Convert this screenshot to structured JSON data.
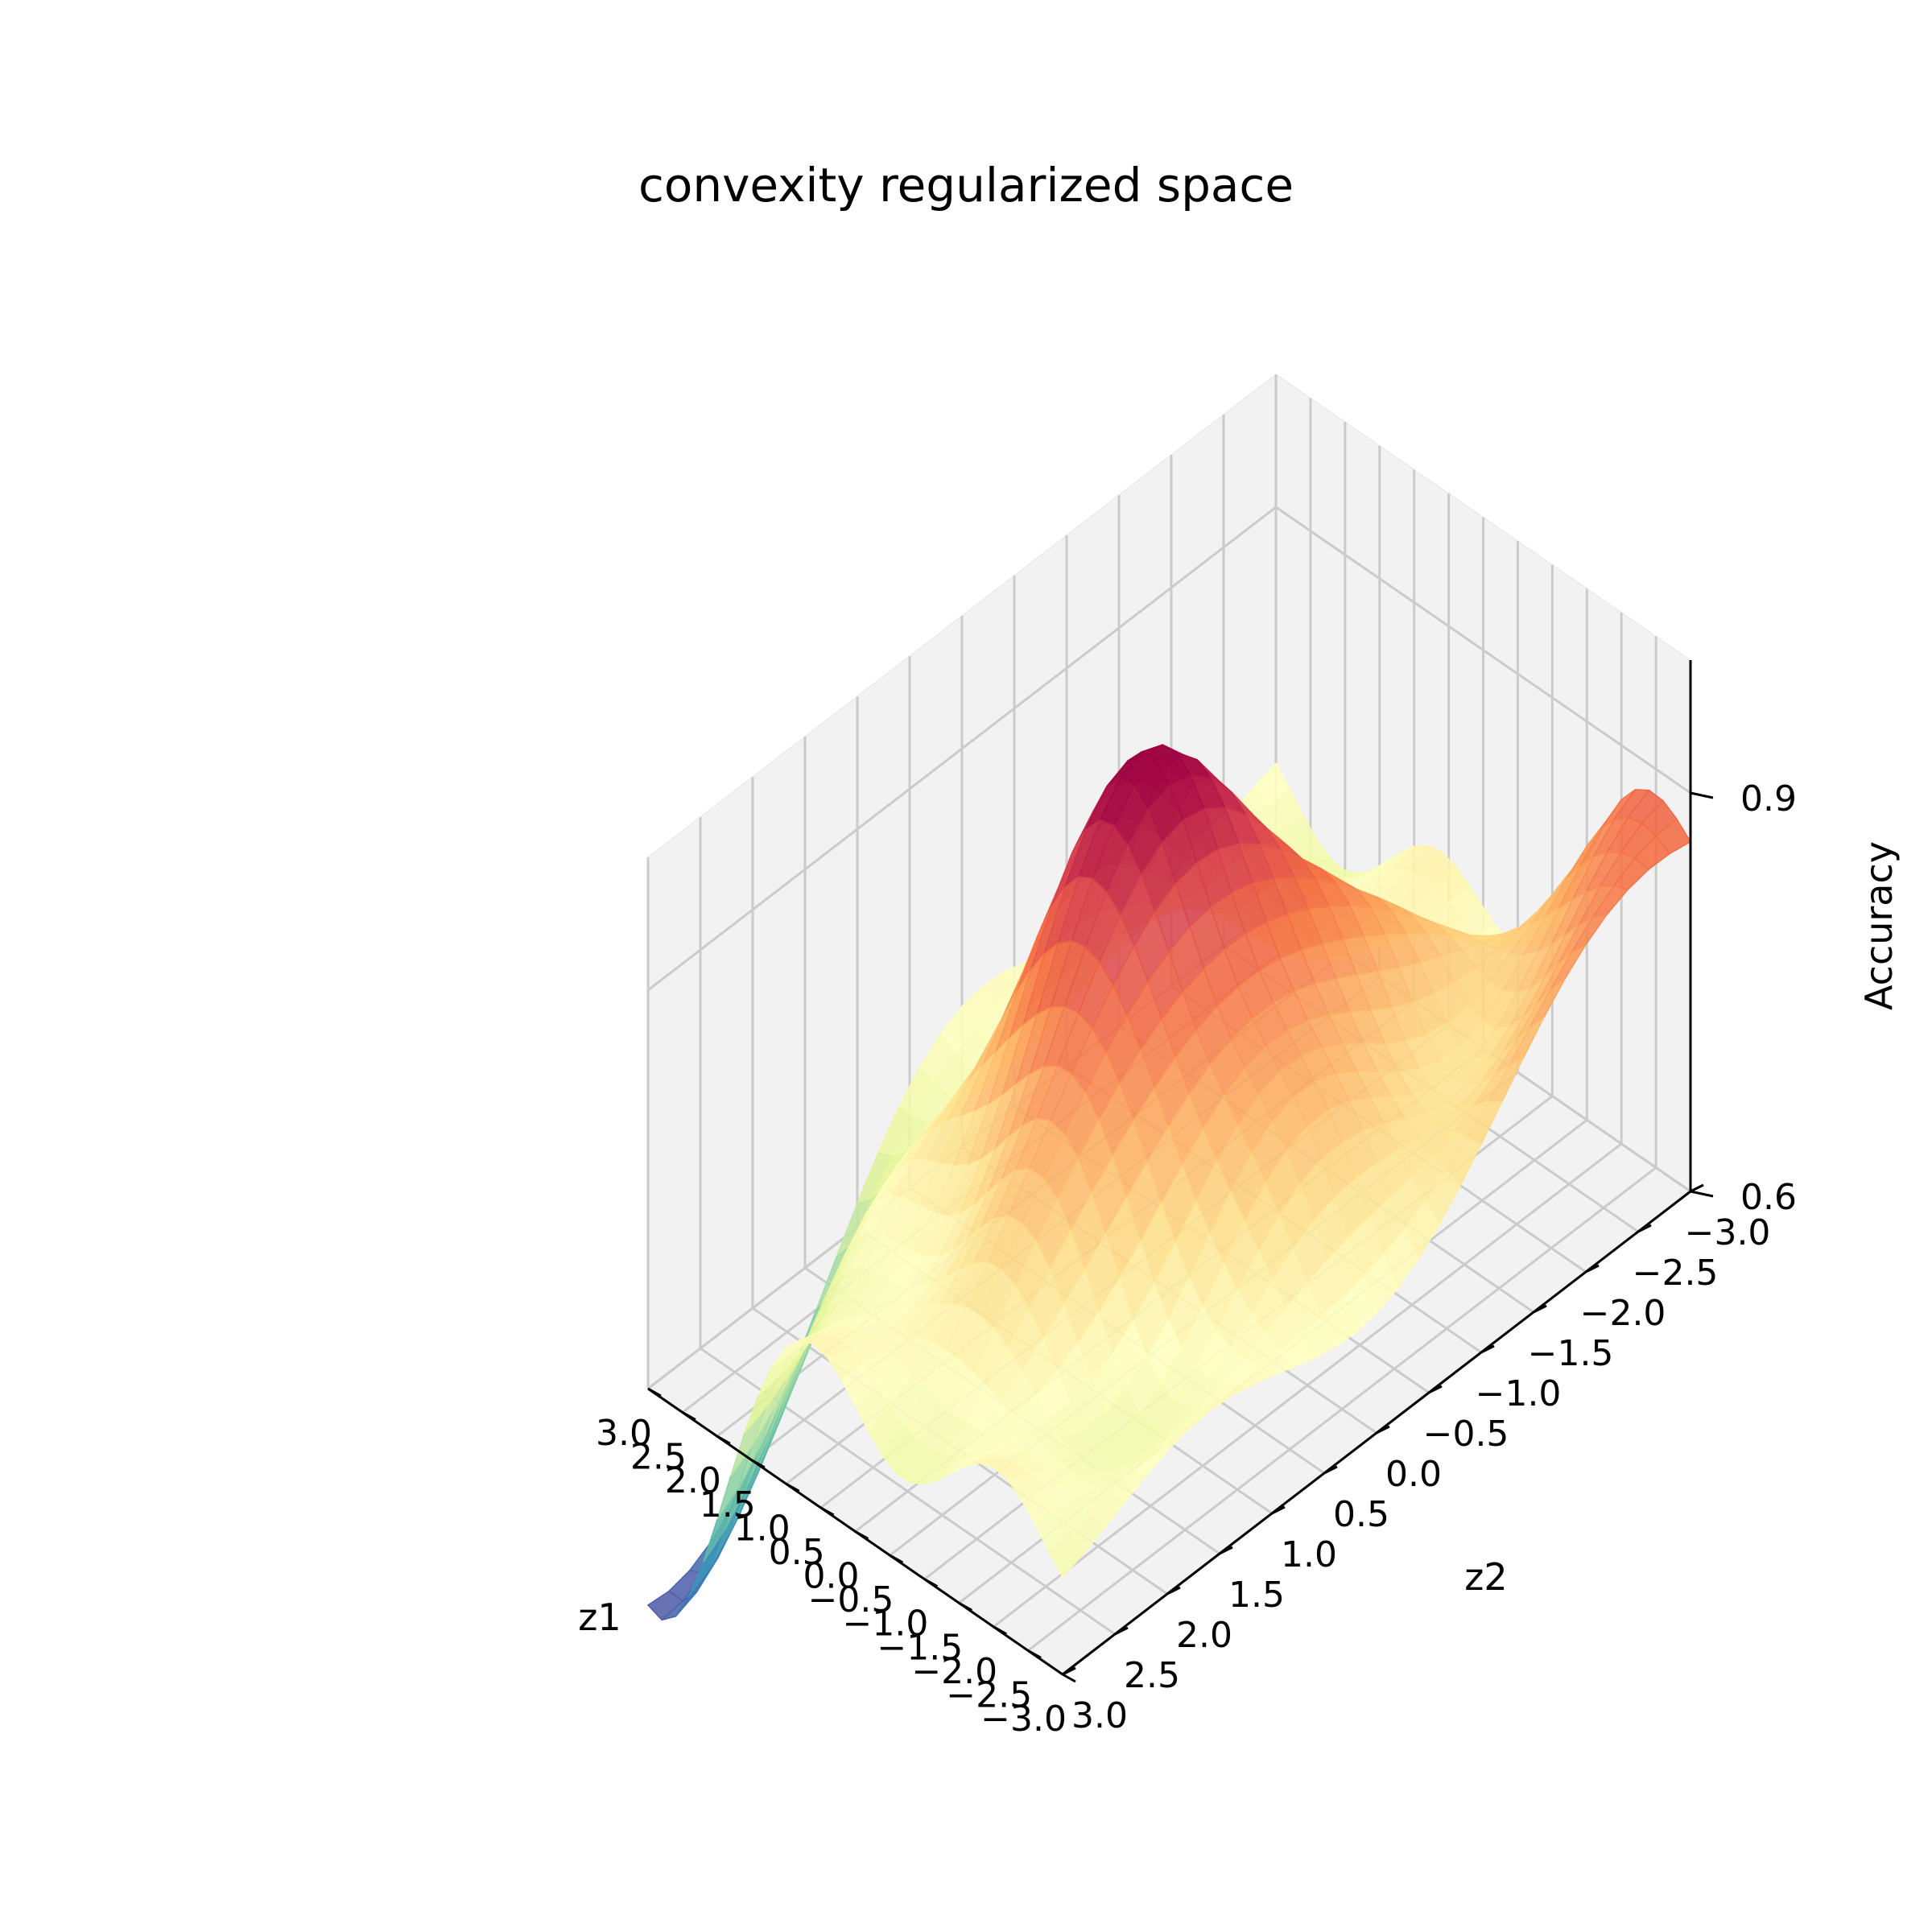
{
  "chart_data": {
    "type": "surface",
    "title": "convexity regularized space",
    "xlabel": "z1",
    "ylabel": "z2",
    "zlabel": "Accuracy",
    "colormap": "Spectral",
    "x_range": [
      -3.0,
      3.0
    ],
    "y_range": [
      -3.0,
      3.0
    ],
    "z_range": [
      0.6,
      1.0
    ],
    "x_ticks": [
      "−3.0",
      "−2.5",
      "−2.0",
      "−1.5",
      "−1.0",
      "−0.5",
      "0.0",
      "0.5",
      "1.0",
      "1.5",
      "2.0",
      "2.5",
      "3.0"
    ],
    "y_ticks": [
      "−3.0",
      "−2.5",
      "−2.0",
      "−1.5",
      "−1.0",
      "−0.5",
      "0.0",
      "0.5",
      "1.0",
      "1.5",
      "2.0",
      "2.5",
      "3.0"
    ],
    "z_ticks": [
      0.6,
      0.9
    ],
    "z_tick_labels": [
      "0.6",
      "0.9"
    ],
    "grid": true,
    "surface": {
      "model": "approximate surface read from the figure",
      "peak": {
        "z1": 0.0,
        "z2": 0.0,
        "accuracy": 0.98
      },
      "minimum": {
        "z1": 3.0,
        "z2": 3.0,
        "accuracy": 0.42
      },
      "high_corner": {
        "z1": -3.0,
        "z2": -3.0,
        "accuracy": 0.88
      }
    }
  }
}
